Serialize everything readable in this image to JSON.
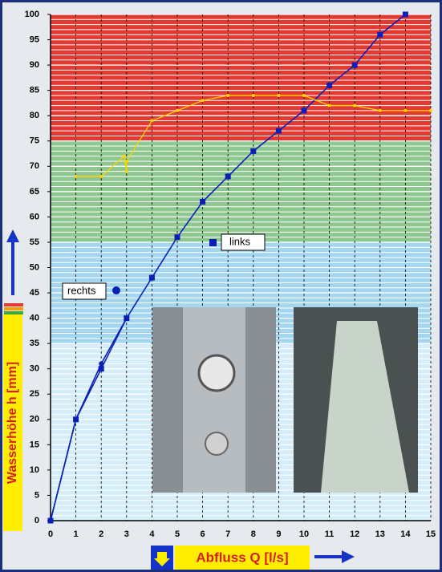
{
  "chart_data": {
    "type": "line",
    "x_label": "Abfluss Q [l/s]",
    "y_label": "Wasserhöhe h [mm]",
    "xlim": [
      0,
      15
    ],
    "ylim": [
      0,
      100
    ],
    "xticks": [
      0,
      1,
      2,
      3,
      4,
      5,
      6,
      7,
      8,
      9,
      10,
      11,
      12,
      13,
      14,
      15
    ],
    "yticks": [
      0,
      5,
      10,
      15,
      20,
      25,
      30,
      35,
      40,
      45,
      50,
      55,
      60,
      65,
      70,
      75,
      80,
      85,
      90,
      95,
      100
    ],
    "ygrid_step": 1,
    "bands": [
      {
        "from": 0,
        "to": 35,
        "color": "#d5edf8"
      },
      {
        "from": 35,
        "to": 55,
        "color": "#a4d6ef"
      },
      {
        "from": 55,
        "to": 75,
        "color": "#8ec78f"
      },
      {
        "from": 75,
        "to": 100,
        "color": "#e23a30"
      }
    ],
    "series": [
      {
        "name": "links",
        "color": "#0a1fb8",
        "marker": "square",
        "x": [
          0,
          1,
          2,
          3,
          4,
          5,
          6,
          7,
          8,
          9,
          10,
          11,
          12,
          13,
          14
        ],
        "values": [
          0,
          20,
          30,
          40,
          48,
          56,
          63,
          68,
          73,
          77,
          81,
          86,
          90,
          96,
          100
        ]
      },
      {
        "name": "rechts",
        "color": "#0a1fb8",
        "marker": "circle",
        "x": [
          0,
          1,
          2,
          3
        ],
        "values": [
          0,
          20,
          31,
          40
        ]
      },
      {
        "color": "#ffd400",
        "marker": "dot",
        "x": [
          1,
          2,
          2.9,
          3,
          3,
          4,
          5,
          6,
          7,
          8,
          9,
          10,
          11,
          12,
          13,
          14,
          15
        ],
        "values": [
          68,
          68,
          72,
          69,
          71,
          79,
          81,
          83,
          84,
          84,
          84,
          84,
          82,
          82,
          81,
          81,
          81
        ]
      }
    ]
  }
}
